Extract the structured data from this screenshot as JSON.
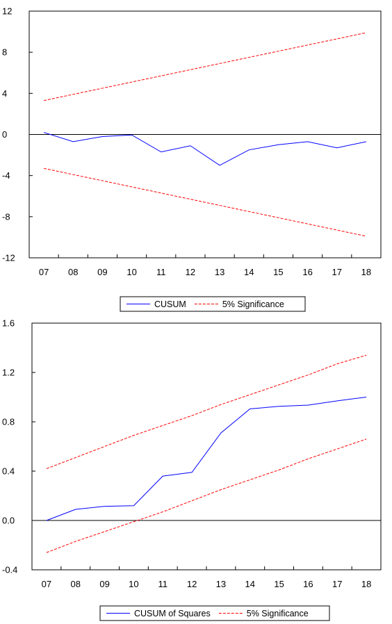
{
  "colors": {
    "series": "#0000ff",
    "bounds": "#ff0000",
    "axis": "#000000"
  },
  "chart_data": [
    {
      "type": "line",
      "x": [
        "07",
        "08",
        "09",
        "10",
        "11",
        "12",
        "13",
        "14",
        "15",
        "16",
        "17",
        "18"
      ],
      "ylim": [
        -12,
        12
      ],
      "yticks": [
        "12",
        "8",
        "4",
        "0",
        "-4",
        "-8",
        "-12"
      ],
      "yticks_values": [
        12,
        8,
        4,
        0,
        -4,
        -8,
        -12
      ],
      "zero_line": true,
      "series": [
        {
          "name": "CUSUM",
          "style": "solid",
          "color": "#0000ff",
          "values": [
            0.2,
            -0.7,
            -0.2,
            -0.05,
            -1.7,
            -1.1,
            -3.0,
            -1.5,
            -1.0,
            -0.7,
            -1.3,
            -0.7
          ]
        },
        {
          "name": "5% Significance",
          "style": "dashed",
          "color": "#ff0000",
          "values": [
            3.3,
            3.9,
            4.5,
            5.1,
            5.7,
            6.3,
            6.9,
            7.5,
            8.1,
            8.7,
            9.3,
            9.9
          ]
        },
        {
          "style": "dashed",
          "color": "#ff0000",
          "values": [
            -3.3,
            -3.9,
            -4.5,
            -5.1,
            -5.7,
            -6.3,
            -6.9,
            -7.5,
            -8.1,
            -8.7,
            -9.3,
            -9.9
          ]
        }
      ],
      "legend": [
        {
          "label": "CUSUM",
          "style": "solid",
          "color": "#0000ff"
        },
        {
          "label": "5% Significance",
          "style": "dashed",
          "color": "#ff0000"
        }
      ],
      "legend_position": "bottom-center"
    },
    {
      "type": "line",
      "x": [
        "07",
        "08",
        "09",
        "10",
        "11",
        "12",
        "13",
        "14",
        "15",
        "16",
        "17",
        "18"
      ],
      "ylim": [
        -0.4,
        1.6
      ],
      "yticks": [
        "1.6",
        "1.2",
        "0.8",
        "0.4",
        "0.0",
        "-0.4"
      ],
      "yticks_values": [
        1.6,
        1.2,
        0.8,
        0.4,
        0.0,
        -0.4
      ],
      "zero_line": true,
      "series": [
        {
          "name": "CUSUM of Squares",
          "style": "solid",
          "color": "#0000ff",
          "values": [
            0.0,
            0.09,
            0.115,
            0.12,
            0.36,
            0.39,
            0.71,
            0.905,
            0.925,
            0.935,
            0.97,
            1.0
          ]
        },
        {
          "name": "5% Significance",
          "style": "dashed",
          "color": "#ff0000",
          "values": [
            0.42,
            0.51,
            0.6,
            0.69,
            0.77,
            0.85,
            0.94,
            1.02,
            1.1,
            1.18,
            1.27,
            1.34
          ]
        },
        {
          "style": "dashed",
          "color": "#ff0000",
          "values": [
            -0.26,
            -0.17,
            -0.09,
            -0.01,
            0.07,
            0.16,
            0.25,
            0.33,
            0.41,
            0.5,
            0.58,
            0.66
          ]
        }
      ],
      "legend": [
        {
          "label": "CUSUM of Squares",
          "style": "solid",
          "color": "#0000ff"
        },
        {
          "label": "5% Significance",
          "style": "dashed",
          "color": "#ff0000"
        }
      ],
      "legend_position": "bottom-center"
    }
  ]
}
